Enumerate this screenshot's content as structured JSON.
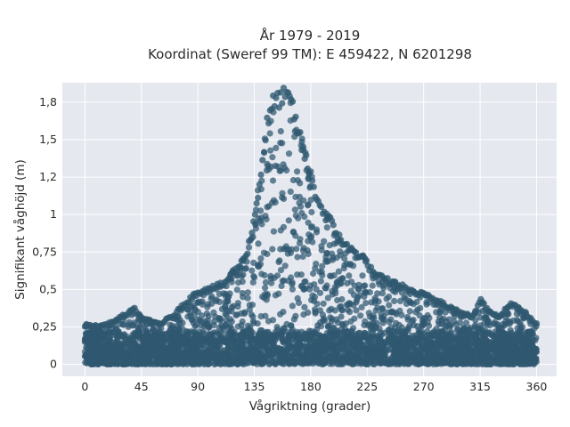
{
  "chart_data": {
    "type": "scatter",
    "title": "År 1979 - 2019",
    "subtitle": "Koordinat (Sweref 99 TM): E 459422, N 6201298",
    "xlabel": "Vågriktning (grader)",
    "ylabel": "Signifikant våghöjd (m)",
    "xlim": [
      -18,
      376
    ],
    "ylim": [
      -0.08,
      1.88
    ],
    "x_ticks": [
      0,
      45,
      90,
      135,
      180,
      225,
      270,
      315,
      360
    ],
    "x_tick_labels": [
      "0",
      "45",
      "90",
      "135",
      "180",
      "225",
      "270",
      "315",
      "360"
    ],
    "y_ticks": [
      0,
      0.25,
      0.5,
      0.75,
      1,
      1.25,
      1.5,
      1.75
    ],
    "y_tick_labels": [
      "0",
      "0,25",
      "0,5",
      "0,75",
      "1",
      "1,2",
      "1,5",
      "1,8"
    ],
    "grid": true,
    "legend": "none",
    "marker_color": "#2f5870",
    "background_color": "#e5e8ef",
    "x_range": [
      0,
      360
    ],
    "upper_envelope": {
      "x": [
        0,
        10,
        20,
        30,
        40,
        45,
        50,
        60,
        70,
        80,
        90,
        100,
        110,
        120,
        125,
        130,
        135,
        140,
        145,
        150,
        155,
        160,
        165,
        170,
        175,
        180,
        185,
        190,
        195,
        200,
        210,
        220,
        225,
        230,
        240,
        250,
        260,
        270,
        280,
        290,
        300,
        310,
        315,
        320,
        330,
        340,
        350,
        360
      ],
      "y": [
        0.27,
        0.26,
        0.28,
        0.33,
        0.38,
        0.32,
        0.3,
        0.28,
        0.33,
        0.42,
        0.5,
        0.52,
        0.55,
        0.65,
        0.7,
        0.8,
        1.0,
        1.3,
        1.65,
        1.8,
        1.84,
        1.85,
        1.8,
        1.6,
        1.45,
        1.3,
        1.15,
        1.05,
        1.0,
        0.9,
        0.8,
        0.75,
        0.7,
        0.62,
        0.58,
        0.55,
        0.5,
        0.48,
        0.44,
        0.4,
        0.35,
        0.33,
        0.45,
        0.38,
        0.33,
        0.42,
        0.36,
        0.28
      ]
    }
  }
}
